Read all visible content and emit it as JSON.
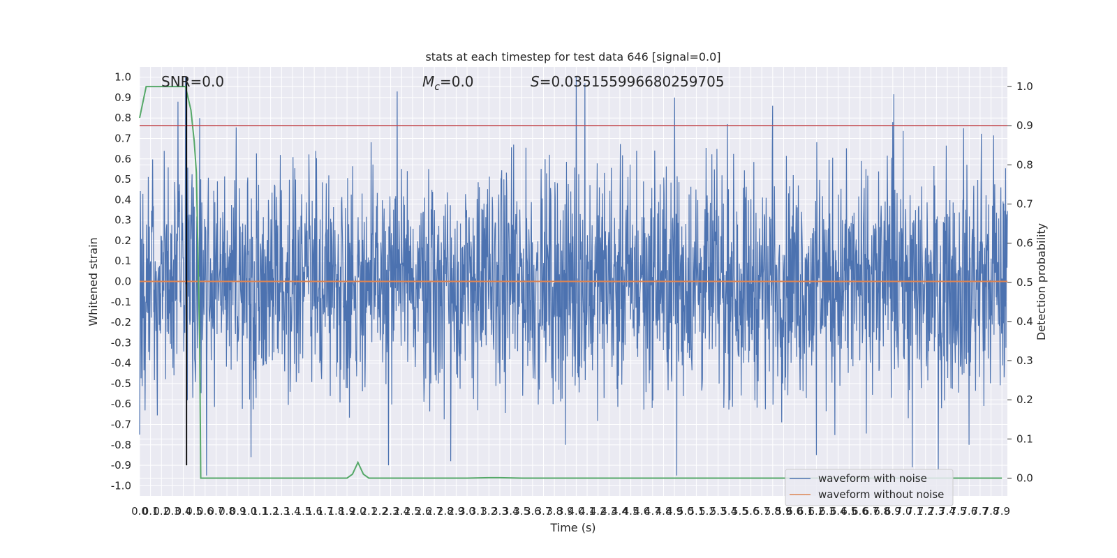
{
  "chart_data": {
    "type": "line",
    "title": "stats at each timestep for test data 646 [signal=0.0]",
    "xlabel": "Time (s)",
    "ylabel": "Whitened strain",
    "ylabel_right": "Detection probability",
    "xlim": [
      0.0,
      7.95
    ],
    "ylim": [
      -1.05,
      1.05
    ],
    "ylim_right": [
      -0.0455,
      1.05
    ],
    "x_ticks": [
      "0.0",
      "0.1",
      "0.2",
      "0.3",
      "0.4",
      "0.5",
      "0.6",
      "0.7",
      "0.8",
      "0.9",
      "1.0",
      "1.1",
      "1.2",
      "1.3",
      "1.4",
      "1.5",
      "1.6",
      "1.7",
      "1.8",
      "1.9",
      "2.0",
      "2.1",
      "2.2",
      "2.3",
      "2.4",
      "2.5",
      "2.6",
      "2.7",
      "2.8",
      "2.9",
      "3.0",
      "3.1",
      "3.2",
      "3.3",
      "3.4",
      "3.5",
      "3.6",
      "3.7",
      "3.8",
      "3.9",
      "4.0",
      "4.1",
      "4.2",
      "4.3",
      "4.4",
      "4.5",
      "4.6",
      "4.7",
      "4.8",
      "4.9",
      "5.0",
      "5.1",
      "5.2",
      "5.3",
      "5.4",
      "5.5",
      "5.6",
      "5.7",
      "5.8",
      "5.9",
      "6.0",
      "6.1",
      "6.2",
      "6.3",
      "6.4",
      "6.5",
      "6.6",
      "6.7",
      "6.8",
      "6.9",
      "7.0",
      "7.1",
      "7.2",
      "7.3",
      "7.4",
      "7.5",
      "7.6",
      "7.7",
      "7.8",
      "7.9"
    ],
    "y_ticks": [
      "-1.0",
      "-0.9",
      "-0.8",
      "-0.7",
      "-0.6",
      "-0.5",
      "-0.4",
      "-0.3",
      "-0.2",
      "-0.1",
      "0.0",
      "0.1",
      "0.2",
      "0.3",
      "0.4",
      "0.5",
      "0.6",
      "0.7",
      "0.8",
      "0.9",
      "1.0"
    ],
    "y_ticks_right": [
      "0.0",
      "0.1",
      "0.2",
      "0.3",
      "0.4",
      "0.5",
      "0.6",
      "0.7",
      "0.8",
      "0.9",
      "1.0"
    ],
    "grid": true,
    "legend": {
      "placement": "lower-right",
      "entries": [
        {
          "label": "waveform with noise",
          "color": "#4c72b0"
        },
        {
          "label": "waveform without noise",
          "color": "#dd8452"
        }
      ]
    },
    "annotations": {
      "snr": "SNR=0.0",
      "mc_symbol": "M",
      "mc_sub": "c",
      "mc_value": "=0.0",
      "s_symbol": "S",
      "s_value": "=0.035155996680259705"
    },
    "series": [
      {
        "name": "waveform with noise",
        "axis": "left",
        "color": "#4c72b0",
        "style": "noise",
        "typical_amplitude": 0.3,
        "extremes": [
          {
            "x": 0.35,
            "y": 0.88
          },
          {
            "x": 0.42,
            "y": 1.0
          },
          {
            "x": 0.55,
            "y": 0.8
          },
          {
            "x": 2.36,
            "y": 0.93
          },
          {
            "x": 4.0,
            "y": 1.0
          },
          {
            "x": 4.08,
            "y": 0.97
          },
          {
            "x": 4.9,
            "y": 0.9
          },
          {
            "x": 5.8,
            "y": 0.86
          },
          {
            "x": 6.9,
            "y": 0.78
          },
          {
            "x": 7.55,
            "y": 0.75
          },
          {
            "x": 0.0,
            "y": -0.75
          },
          {
            "x": 1.02,
            "y": -0.86
          },
          {
            "x": 2.28,
            "y": -0.9
          },
          {
            "x": 2.85,
            "y": -0.88
          },
          {
            "x": 3.9,
            "y": -0.8
          },
          {
            "x": 6.2,
            "y": -0.85
          },
          {
            "x": 7.08,
            "y": -0.91
          },
          {
            "x": 7.6,
            "y": -0.8
          }
        ]
      },
      {
        "name": "waveform without noise",
        "axis": "left",
        "color": "#dd8452",
        "x": [
          0.0,
          7.95
        ],
        "y": [
          0.0,
          0.0
        ]
      },
      {
        "name": "detection probability",
        "axis": "right",
        "color": "#55a868",
        "x": [
          0.0,
          0.06,
          0.12,
          0.2,
          0.3,
          0.38,
          0.42,
          0.47,
          0.5,
          0.52,
          0.55,
          0.56,
          0.6,
          1.0,
          1.5,
          1.9,
          1.95,
          2.0,
          2.05,
          2.1,
          2.2,
          2.6,
          3.0,
          3.2,
          3.3,
          3.5,
          4.0,
          5.0,
          6.0,
          7.0,
          7.9
        ],
        "y": [
          0.92,
          1.0,
          1.0,
          1.0,
          1.0,
          1.0,
          1.0,
          0.94,
          0.86,
          0.78,
          0.35,
          0.0,
          0.0,
          0.0,
          0.0,
          0.0,
          0.01,
          0.04,
          0.01,
          0.0,
          0.0,
          0.0,
          0.0,
          0.001,
          0.001,
          0.0,
          0.0,
          0.0,
          0.0,
          0.0,
          0.0
        ]
      }
    ],
    "reference_lines": [
      {
        "kind": "hline",
        "axis": "right",
        "y": 0.9,
        "color": "#c44e52"
      },
      {
        "kind": "vline",
        "x": 0.43,
        "y_range": [
          -0.9,
          1.0
        ],
        "color": "#000000"
      }
    ]
  }
}
